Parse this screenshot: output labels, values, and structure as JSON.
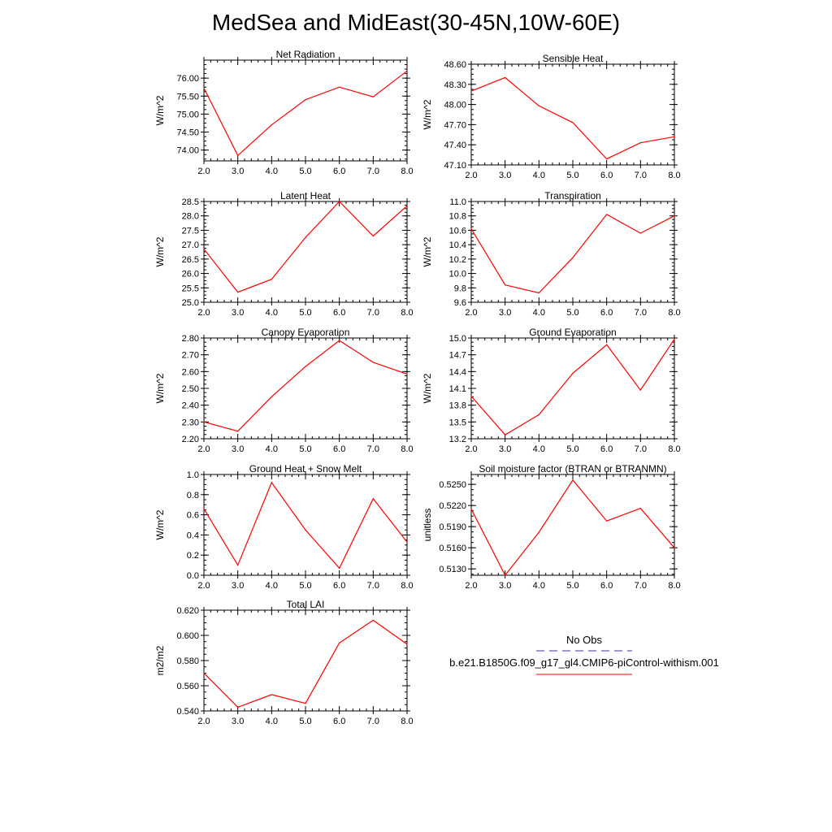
{
  "title": "MedSea and MidEast(30-45N,10W-60E)",
  "colors": {
    "series": "#ff0000",
    "obs": "#3a3a99",
    "axis": "#000000"
  },
  "legend": {
    "obs_label": "No Obs",
    "model_label": "b.e21.B1850G.f09_g17_gl4.CMIP6-piControl-withism.001"
  },
  "chart_data": [
    {
      "type": "line",
      "title": "Net Radiation",
      "ylabel": "W/m^2",
      "x": [
        2,
        3,
        4,
        5,
        6,
        7,
        8
      ],
      "xticks": [
        "2.0",
        "3.0",
        "4.0",
        "5.0",
        "6.0",
        "7.0",
        "8.0"
      ],
      "xlim": [
        2,
        8
      ],
      "ylim": [
        73.7,
        76.5
      ],
      "yticks": [
        74.0,
        74.5,
        75.0,
        75.5,
        76.0
      ],
      "yticklabels": [
        "74.00",
        "74.50",
        "75.00",
        "75.50",
        "76.00"
      ],
      "values": [
        75.72,
        73.85,
        74.7,
        75.4,
        75.75,
        75.48,
        76.2
      ]
    },
    {
      "type": "line",
      "title": "Sensible Heat",
      "ylabel": "W/m^2",
      "x": [
        2,
        3,
        4,
        5,
        6,
        7,
        8
      ],
      "xticks": [
        "2.0",
        "3.0",
        "4.0",
        "5.0",
        "6.0",
        "7.0",
        "8.0"
      ],
      "xlim": [
        2,
        8
      ],
      "ylim": [
        47.1,
        48.6
      ],
      "yticks": [
        47.1,
        47.4,
        47.7,
        48.0,
        48.3,
        48.6
      ],
      "yticklabels": [
        "47.10",
        "47.40",
        "47.70",
        "48.00",
        "48.30",
        "48.60"
      ],
      "values": [
        48.2,
        48.4,
        47.98,
        47.73,
        47.19,
        47.43,
        47.52
      ]
    },
    {
      "type": "line",
      "title": "Latent Heat",
      "ylabel": "W/m^2",
      "x": [
        2,
        3,
        4,
        5,
        6,
        7,
        8
      ],
      "xticks": [
        "2.0",
        "3.0",
        "4.0",
        "5.0",
        "6.0",
        "7.0",
        "8.0"
      ],
      "xlim": [
        2,
        8
      ],
      "ylim": [
        25.0,
        28.5
      ],
      "yticks": [
        25.0,
        25.5,
        26.0,
        26.5,
        27.0,
        27.5,
        28.0,
        28.5
      ],
      "yticklabels": [
        "25.0",
        "25.5",
        "26.0",
        "26.5",
        "27.0",
        "27.5",
        "28.0",
        "28.5"
      ],
      "values": [
        26.85,
        25.35,
        25.8,
        27.25,
        28.5,
        27.3,
        28.35
      ]
    },
    {
      "type": "line",
      "title": "Transpiration",
      "ylabel": "W/m^2",
      "x": [
        2,
        3,
        4,
        5,
        6,
        7,
        8
      ],
      "xticks": [
        "2.0",
        "3.0",
        "4.0",
        "5.0",
        "6.0",
        "7.0",
        "8.0"
      ],
      "xlim": [
        2,
        8
      ],
      "ylim": [
        9.6,
        11.0
      ],
      "yticks": [
        9.6,
        9.8,
        10.0,
        10.2,
        10.4,
        10.6,
        10.8,
        11.0
      ],
      "yticklabels": [
        "9.6",
        "9.8",
        "10.0",
        "10.2",
        "10.4",
        "10.6",
        "10.8",
        "11.0"
      ],
      "values": [
        10.62,
        9.84,
        9.73,
        10.22,
        10.82,
        10.56,
        10.8
      ]
    },
    {
      "type": "line",
      "title": "Canopy Evaporation",
      "ylabel": "W/m^2",
      "x": [
        2,
        3,
        4,
        5,
        6,
        7,
        8
      ],
      "xticks": [
        "2.0",
        "3.0",
        "4.0",
        "5.0",
        "6.0",
        "7.0",
        "8.0"
      ],
      "xlim": [
        2,
        8
      ],
      "ylim": [
        2.2,
        2.8
      ],
      "yticks": [
        2.2,
        2.3,
        2.4,
        2.5,
        2.6,
        2.7,
        2.8
      ],
      "yticklabels": [
        "2.20",
        "2.30",
        "2.40",
        "2.50",
        "2.60",
        "2.70",
        "2.80"
      ],
      "values": [
        2.3,
        2.245,
        2.45,
        2.63,
        2.785,
        2.655,
        2.585
      ]
    },
    {
      "type": "line",
      "title": "Ground Evaporation",
      "ylabel": "W/m^2",
      "x": [
        2,
        3,
        4,
        5,
        6,
        7,
        8
      ],
      "xticks": [
        "2.0",
        "3.0",
        "4.0",
        "5.0",
        "6.0",
        "7.0",
        "8.0"
      ],
      "xlim": [
        2,
        8
      ],
      "ylim": [
        13.2,
        15.0
      ],
      "yticks": [
        13.2,
        13.5,
        13.8,
        14.1,
        14.4,
        14.7,
        15.0
      ],
      "yticklabels": [
        "13.2",
        "13.5",
        "13.8",
        "14.1",
        "14.4",
        "14.7",
        "15.0"
      ],
      "values": [
        13.96,
        13.27,
        13.63,
        14.37,
        14.88,
        14.07,
        14.98
      ]
    },
    {
      "type": "line",
      "title": "Ground Heat + Snow Melt",
      "ylabel": "W/m^2",
      "x": [
        2,
        3,
        4,
        5,
        6,
        7,
        8
      ],
      "xticks": [
        "2.0",
        "3.0",
        "4.0",
        "5.0",
        "6.0",
        "7.0",
        "8.0"
      ],
      "xlim": [
        2,
        8
      ],
      "ylim": [
        0.0,
        1.0
      ],
      "yticks": [
        0.0,
        0.2,
        0.4,
        0.6,
        0.8,
        1.0
      ],
      "yticklabels": [
        "0.0",
        "0.2",
        "0.4",
        "0.6",
        "0.8",
        "1.0"
      ],
      "values": [
        0.66,
        0.1,
        0.92,
        0.45,
        0.07,
        0.76,
        0.33
      ]
    },
    {
      "type": "line",
      "title": "Soil moisture factor (BTRAN or BTRANMN)",
      "ylabel": "unitless",
      "x": [
        2,
        3,
        4,
        5,
        6,
        7,
        8
      ],
      "xticks": [
        "2.0",
        "3.0",
        "4.0",
        "5.0",
        "6.0",
        "7.0",
        "8.0"
      ],
      "xlim": [
        2,
        8
      ],
      "ylim": [
        0.5121,
        0.5264
      ],
      "yticks": [
        0.513,
        0.516,
        0.519,
        0.522,
        0.525
      ],
      "yticklabels": [
        "0.5130",
        "0.5160",
        "0.5190",
        "0.5220",
        "0.5250"
      ],
      "values": [
        0.5215,
        0.5121,
        0.5182,
        0.5256,
        0.5198,
        0.5216,
        0.516
      ]
    },
    {
      "type": "line",
      "title": "Total LAI",
      "ylabel": "m2/m2",
      "x": [
        2,
        3,
        4,
        5,
        6,
        7,
        8
      ],
      "xticks": [
        "2.0",
        "3.0",
        "4.0",
        "5.0",
        "6.0",
        "7.0",
        "8.0"
      ],
      "xlim": [
        2,
        8
      ],
      "ylim": [
        0.54,
        0.62
      ],
      "yticks": [
        0.54,
        0.56,
        0.58,
        0.6,
        0.62
      ],
      "yticklabels": [
        "0.540",
        "0.560",
        "0.580",
        "0.600",
        "0.620"
      ],
      "values": [
        0.57,
        0.543,
        0.553,
        0.546,
        0.594,
        0.612,
        0.593
      ]
    }
  ]
}
